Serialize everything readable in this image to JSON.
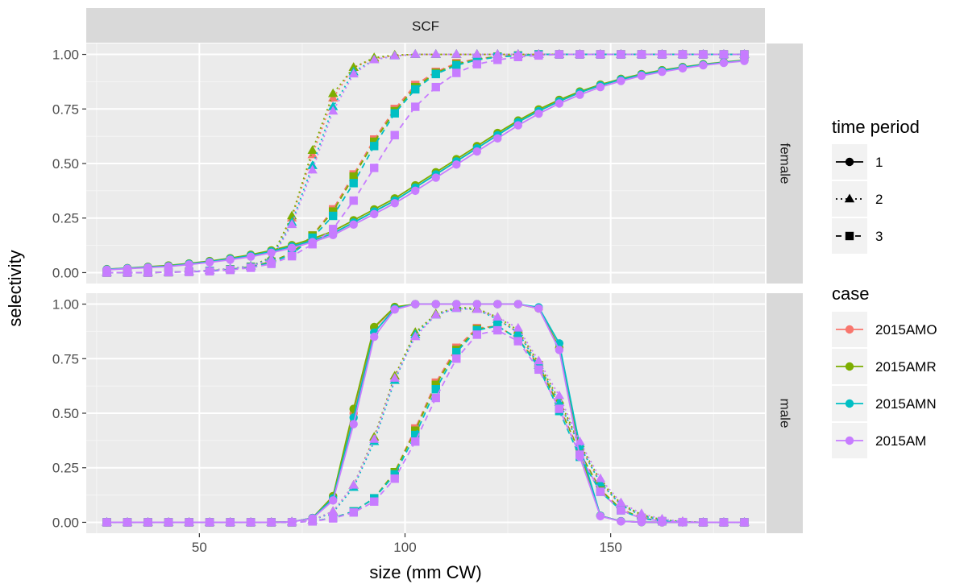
{
  "chart_data": {
    "type": "line",
    "facet_column": "SCF",
    "facet_rows": [
      "female",
      "male"
    ],
    "xlabel": "size (mm CW)",
    "ylabel": "selectivity",
    "xlim": [
      22.5,
      187.5
    ],
    "ylim": [
      -0.05,
      1.05
    ],
    "x_ticks": [
      50,
      100,
      150
    ],
    "x_tick_labels": [
      "50",
      "100",
      "150"
    ],
    "y_ticks": [
      0,
      0.25,
      0.5,
      0.75,
      1
    ],
    "y_tick_labels": [
      "0.00",
      "0.25",
      "0.50",
      "0.75",
      "1.00"
    ],
    "grid": true,
    "legend_position": "right",
    "legend_time_period": {
      "title": "time period",
      "items": [
        {
          "label": "1",
          "shape": "circle",
          "linetype": "solid"
        },
        {
          "label": "2",
          "shape": "triangle",
          "linetype": "dotted"
        },
        {
          "label": "3",
          "shape": "square",
          "linetype": "dashed"
        }
      ]
    },
    "legend_case": {
      "title": "case",
      "items": [
        {
          "label": "2015AMO",
          "color": "#F8766D"
        },
        {
          "label": "2015AMR",
          "color": "#7CAE00"
        },
        {
          "label": "2015AMN",
          "color": "#00BFC4"
        },
        {
          "label": "2015AM",
          "color": "#C77CFF"
        }
      ]
    },
    "x": [
      27.5,
      32.5,
      37.5,
      42.5,
      47.5,
      52.5,
      57.5,
      62.5,
      67.5,
      72.5,
      77.5,
      82.5,
      87.5,
      92.5,
      97.5,
      102.5,
      107.5,
      112.5,
      117.5,
      122.5,
      127.5,
      132.5,
      137.5,
      142.5,
      147.5,
      152.5,
      157.5,
      162.5,
      167.5,
      172.5,
      177.5,
      182.5
    ],
    "series": [
      {
        "panel": "female",
        "time_period": "1",
        "case": "2015AMO",
        "values": [
          0.015,
          0.02,
          0.025,
          0.03,
          0.04,
          0.05,
          0.063,
          0.078,
          0.097,
          0.12,
          0.147,
          0.18,
          0.23,
          0.28,
          0.33,
          0.39,
          0.45,
          0.51,
          0.57,
          0.63,
          0.69,
          0.74,
          0.785,
          0.825,
          0.858,
          0.885,
          0.907,
          0.925,
          0.94,
          0.953,
          0.963,
          0.972
        ]
      },
      {
        "panel": "female",
        "time_period": "1",
        "case": "2015AMR",
        "values": [
          0.016,
          0.021,
          0.027,
          0.033,
          0.042,
          0.053,
          0.066,
          0.082,
          0.102,
          0.126,
          0.155,
          0.19,
          0.24,
          0.29,
          0.34,
          0.4,
          0.46,
          0.52,
          0.58,
          0.64,
          0.697,
          0.748,
          0.792,
          0.83,
          0.862,
          0.888,
          0.91,
          0.928,
          0.942,
          0.955,
          0.965,
          0.974
        ]
      },
      {
        "panel": "female",
        "time_period": "1",
        "case": "2015AMN",
        "values": [
          0.015,
          0.02,
          0.025,
          0.03,
          0.04,
          0.05,
          0.063,
          0.078,
          0.097,
          0.12,
          0.147,
          0.18,
          0.23,
          0.28,
          0.33,
          0.39,
          0.45,
          0.51,
          0.57,
          0.63,
          0.69,
          0.74,
          0.785,
          0.825,
          0.858,
          0.885,
          0.907,
          0.925,
          0.94,
          0.953,
          0.963,
          0.972
        ]
      },
      {
        "panel": "female",
        "time_period": "1",
        "case": "2015AM",
        "values": [
          0.013,
          0.018,
          0.023,
          0.028,
          0.037,
          0.047,
          0.059,
          0.073,
          0.091,
          0.113,
          0.14,
          0.172,
          0.22,
          0.268,
          0.318,
          0.375,
          0.435,
          0.495,
          0.555,
          0.615,
          0.675,
          0.728,
          0.775,
          0.815,
          0.85,
          0.878,
          0.902,
          0.92,
          0.936,
          0.95,
          0.961,
          0.97
        ]
      },
      {
        "panel": "female",
        "time_period": "2",
        "case": "2015AMO",
        "values": [
          0.0,
          0.0,
          0.0,
          0.002,
          0.005,
          0.01,
          0.018,
          0.03,
          0.07,
          0.25,
          0.54,
          0.8,
          0.94,
          0.98,
          0.995,
          1,
          1,
          1,
          1,
          1,
          1,
          1,
          1,
          1,
          1,
          1,
          1,
          1,
          1,
          1,
          1,
          1
        ]
      },
      {
        "panel": "female",
        "time_period": "2",
        "case": "2015AMR",
        "values": [
          0.0,
          0.0,
          0.0,
          0.002,
          0.005,
          0.01,
          0.018,
          0.03,
          0.07,
          0.26,
          0.56,
          0.82,
          0.94,
          0.985,
          0.997,
          1,
          1,
          1,
          1,
          1,
          1,
          1,
          1,
          1,
          1,
          1,
          1,
          1,
          1,
          1,
          1,
          1
        ]
      },
      {
        "panel": "female",
        "time_period": "2",
        "case": "2015AMN",
        "values": [
          0.0,
          0.0,
          0.0,
          0.002,
          0.005,
          0.01,
          0.018,
          0.03,
          0.065,
          0.23,
          0.49,
          0.76,
          0.92,
          0.975,
          0.993,
          1,
          1,
          1,
          1,
          1,
          1,
          1,
          1,
          1,
          1,
          1,
          1,
          1,
          1,
          1,
          1,
          1
        ]
      },
      {
        "panel": "female",
        "time_period": "2",
        "case": "2015AM",
        "values": [
          0.0,
          0.0,
          0.0,
          0.002,
          0.005,
          0.01,
          0.017,
          0.028,
          0.06,
          0.22,
          0.47,
          0.74,
          0.91,
          0.975,
          0.993,
          1,
          1,
          1,
          1,
          1,
          1,
          1,
          1,
          1,
          1,
          1,
          1,
          1,
          1,
          1,
          1,
          1
        ]
      },
      {
        "panel": "female",
        "time_period": "3",
        "case": "2015AMO",
        "values": [
          0.0,
          0.0,
          0.0,
          0.002,
          0.004,
          0.008,
          0.015,
          0.027,
          0.05,
          0.09,
          0.17,
          0.29,
          0.45,
          0.61,
          0.75,
          0.86,
          0.92,
          0.96,
          0.98,
          0.99,
          0.995,
          1,
          1,
          1,
          1,
          1,
          1,
          1,
          1,
          1,
          1,
          1
        ]
      },
      {
        "panel": "female",
        "time_period": "3",
        "case": "2015AMR",
        "values": [
          0.0,
          0.0,
          0.0,
          0.002,
          0.004,
          0.008,
          0.015,
          0.027,
          0.05,
          0.09,
          0.17,
          0.28,
          0.44,
          0.6,
          0.74,
          0.85,
          0.915,
          0.955,
          0.978,
          0.99,
          0.995,
          1,
          1,
          1,
          1,
          1,
          1,
          1,
          1,
          1,
          1,
          1
        ]
      },
      {
        "panel": "female",
        "time_period": "3",
        "case": "2015AMN",
        "values": [
          0.0,
          0.0,
          0.0,
          0.002,
          0.004,
          0.008,
          0.014,
          0.025,
          0.046,
          0.085,
          0.16,
          0.26,
          0.41,
          0.58,
          0.73,
          0.84,
          0.91,
          0.95,
          0.975,
          0.988,
          0.994,
          1,
          1,
          1,
          1,
          1,
          1,
          1,
          1,
          1,
          1,
          1
        ]
      },
      {
        "panel": "female",
        "time_period": "3",
        "case": "2015AM",
        "values": [
          0.0,
          0.0,
          0.0,
          0.002,
          0.003,
          0.006,
          0.012,
          0.022,
          0.04,
          0.075,
          0.13,
          0.2,
          0.33,
          0.48,
          0.63,
          0.76,
          0.85,
          0.915,
          0.955,
          0.975,
          0.988,
          0.995,
          1,
          1,
          1,
          1,
          1,
          1,
          1,
          1,
          1,
          1
        ]
      },
      {
        "panel": "male",
        "time_period": "1",
        "case": "2015AMO",
        "values": [
          0,
          0,
          0,
          0,
          0,
          0,
          0,
          0,
          0,
          0.002,
          0.02,
          0.12,
          0.5,
          0.89,
          0.985,
          1,
          1,
          1,
          1,
          1,
          1,
          0.98,
          0.8,
          0.33,
          0.03,
          0.005,
          0.001,
          0,
          0,
          0,
          0,
          0
        ]
      },
      {
        "panel": "male",
        "time_period": "1",
        "case": "2015AMR",
        "values": [
          0,
          0,
          0,
          0,
          0,
          0,
          0,
          0,
          0,
          0.002,
          0.02,
          0.12,
          0.52,
          0.895,
          0.987,
          1,
          1,
          1,
          1,
          1,
          1,
          0.98,
          0.8,
          0.33,
          0.03,
          0.005,
          0.001,
          0,
          0,
          0,
          0,
          0
        ]
      },
      {
        "panel": "male",
        "time_period": "1",
        "case": "2015AMN",
        "values": [
          0,
          0,
          0,
          0,
          0,
          0,
          0,
          0,
          0,
          0.002,
          0.02,
          0.11,
          0.48,
          0.87,
          0.98,
          1,
          1,
          1,
          1,
          1,
          1,
          0.985,
          0.82,
          0.35,
          0.03,
          0.005,
          0.001,
          0,
          0,
          0,
          0,
          0
        ]
      },
      {
        "panel": "male",
        "time_period": "1",
        "case": "2015AM",
        "values": [
          0,
          0,
          0,
          0,
          0,
          0,
          0,
          0,
          0,
          0.002,
          0.018,
          0.1,
          0.45,
          0.85,
          0.975,
          1,
          1,
          1,
          1,
          1,
          1,
          0.98,
          0.79,
          0.3,
          0.028,
          0.004,
          0.001,
          0,
          0,
          0,
          0,
          0
        ]
      },
      {
        "panel": "male",
        "time_period": "2",
        "case": "2015AMO",
        "values": [
          0,
          0,
          0,
          0,
          0,
          0,
          0,
          0,
          0,
          0.002,
          0.01,
          0.05,
          0.17,
          0.39,
          0.67,
          0.87,
          0.955,
          0.985,
          0.98,
          0.93,
          0.87,
          0.72,
          0.55,
          0.35,
          0.18,
          0.08,
          0.03,
          0.01,
          0.002,
          0,
          0,
          0
        ]
      },
      {
        "panel": "male",
        "time_period": "2",
        "case": "2015AMR",
        "values": [
          0,
          0,
          0,
          0,
          0,
          0,
          0,
          0,
          0,
          0.002,
          0.01,
          0.05,
          0.17,
          0.39,
          0.67,
          0.87,
          0.955,
          0.985,
          0.98,
          0.94,
          0.88,
          0.73,
          0.56,
          0.36,
          0.19,
          0.085,
          0.035,
          0.012,
          0.003,
          0,
          0,
          0
        ]
      },
      {
        "panel": "male",
        "time_period": "2",
        "case": "2015AMN",
        "values": [
          0,
          0,
          0,
          0,
          0,
          0,
          0,
          0,
          0,
          0.002,
          0.01,
          0.045,
          0.16,
          0.37,
          0.65,
          0.86,
          0.95,
          0.98,
          0.975,
          0.93,
          0.87,
          0.72,
          0.55,
          0.35,
          0.18,
          0.08,
          0.03,
          0.01,
          0.002,
          0,
          0,
          0
        ]
      },
      {
        "panel": "male",
        "time_period": "2",
        "case": "2015AM",
        "values": [
          0,
          0,
          0,
          0,
          0,
          0,
          0,
          0,
          0,
          0.002,
          0.01,
          0.05,
          0.17,
          0.38,
          0.66,
          0.85,
          0.95,
          0.98,
          0.975,
          0.94,
          0.89,
          0.74,
          0.58,
          0.37,
          0.2,
          0.09,
          0.04,
          0.015,
          0.004,
          0,
          0,
          0
        ]
      },
      {
        "panel": "male",
        "time_period": "3",
        "case": "2015AMO",
        "values": [
          0,
          0,
          0,
          0,
          0,
          0,
          0,
          0,
          0,
          0,
          0.005,
          0.02,
          0.05,
          0.11,
          0.23,
          0.43,
          0.64,
          0.8,
          0.89,
          0.9,
          0.84,
          0.72,
          0.53,
          0.32,
          0.15,
          0.06,
          0.02,
          0.005,
          0.001,
          0,
          0,
          0
        ]
      },
      {
        "panel": "male",
        "time_period": "3",
        "case": "2015AMR",
        "values": [
          0,
          0,
          0,
          0,
          0,
          0,
          0,
          0,
          0,
          0,
          0.005,
          0.02,
          0.05,
          0.11,
          0.23,
          0.42,
          0.63,
          0.79,
          0.885,
          0.9,
          0.84,
          0.72,
          0.53,
          0.32,
          0.15,
          0.06,
          0.02,
          0.005,
          0.001,
          0,
          0,
          0
        ]
      },
      {
        "panel": "male",
        "time_period": "3",
        "case": "2015AMN",
        "values": [
          0,
          0,
          0,
          0,
          0,
          0,
          0,
          0,
          0,
          0,
          0.005,
          0.02,
          0.05,
          0.11,
          0.22,
          0.4,
          0.61,
          0.78,
          0.88,
          0.9,
          0.84,
          0.71,
          0.51,
          0.3,
          0.14,
          0.055,
          0.018,
          0.005,
          0.001,
          0,
          0,
          0
        ]
      },
      {
        "panel": "male",
        "time_period": "3",
        "case": "2015AM",
        "values": [
          0,
          0,
          0,
          0,
          0,
          0,
          0,
          0,
          0,
          0,
          0.004,
          0.018,
          0.045,
          0.095,
          0.2,
          0.37,
          0.57,
          0.75,
          0.86,
          0.88,
          0.83,
          0.7,
          0.52,
          0.31,
          0.14,
          0.055,
          0.018,
          0.005,
          0.001,
          0,
          0,
          0
        ]
      }
    ]
  }
}
